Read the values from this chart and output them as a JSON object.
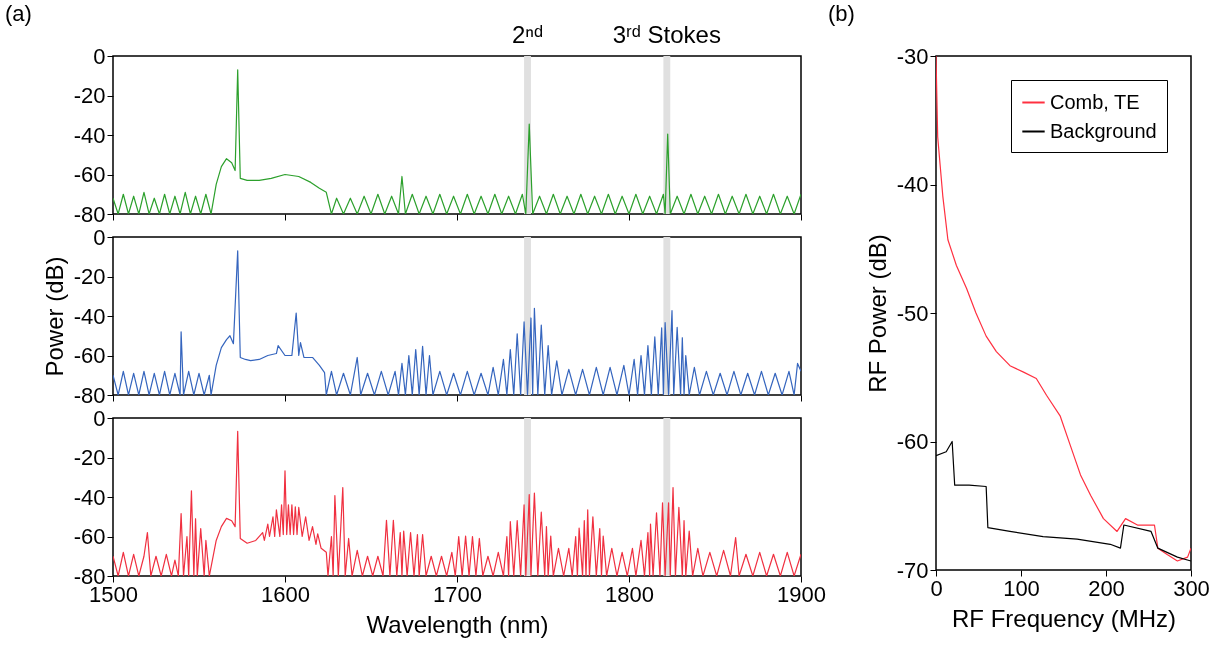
{
  "chart_data": [
    {
      "type": "line",
      "xlim": [
        1500,
        1900
      ],
      "xticks": [
        1500,
        1600,
        1700,
        1800,
        1900
      ],
      "ylim": [
        -80,
        0
      ],
      "yticks": [
        -80,
        -60,
        -40,
        -20,
        0
      ],
      "tick_labels": "y",
      "annotations": [
        "(a)"
      ],
      "bands": [
        {
          "axis": "x",
          "from": 1739,
          "to": 1743,
          "label": "2ⁿᵈ",
          "color": "#e0e0e0"
        },
        {
          "axis": "x",
          "from": 1820,
          "to": 1824,
          "label": "3ʳᵈ Stokes",
          "color": "#e0e0e0"
        }
      ],
      "series": [
        {
          "color": "#2ca02c",
          "x": [
            1500,
            1503,
            1506,
            1509,
            1512,
            1515,
            1518,
            1521,
            1524,
            1527,
            1530,
            1533,
            1536,
            1539,
            1542,
            1545,
            1548,
            1551,
            1554,
            1557,
            1560,
            1563,
            1566,
            1569,
            1571,
            1572.5,
            1574,
            1578,
            1585,
            1592,
            1600,
            1608,
            1615,
            1620,
            1624,
            1627,
            1630,
            1634,
            1638,
            1642,
            1646,
            1650,
            1654,
            1658,
            1662,
            1666,
            1668,
            1670,
            1674,
            1678,
            1682,
            1686,
            1690,
            1694,
            1698,
            1702,
            1706,
            1710,
            1714,
            1718,
            1722,
            1726,
            1730,
            1734,
            1738,
            1740,
            1742,
            1744,
            1748,
            1752,
            1756,
            1760,
            1764,
            1768,
            1772,
            1776,
            1780,
            1784,
            1788,
            1792,
            1796,
            1800,
            1804,
            1808,
            1812,
            1816,
            1820,
            1821,
            1822.5,
            1824,
            1828,
            1832,
            1836,
            1840,
            1844,
            1848,
            1852,
            1856,
            1860,
            1864,
            1868,
            1872,
            1876,
            1880,
            1884,
            1888,
            1892,
            1896,
            1900
          ],
          "values": [
            -72,
            -80,
            -70,
            -80,
            -71,
            -80,
            -69,
            -80,
            -72,
            -80,
            -70,
            -80,
            -71,
            -80,
            -69,
            -80,
            -71,
            -80,
            -70,
            -80,
            -65,
            -56,
            -52,
            -54,
            -58,
            -7,
            -62,
            -63,
            -63,
            -62,
            -60,
            -61,
            -64,
            -67,
            -69,
            -80,
            -72,
            -80,
            -72,
            -80,
            -71,
            -80,
            -70,
            -80,
            -71,
            -80,
            -61,
            -80,
            -70,
            -80,
            -71,
            -80,
            -70,
            -80,
            -71,
            -80,
            -70,
            -80,
            -71,
            -80,
            -70,
            -80,
            -71,
            -80,
            -70,
            -80,
            -34.5,
            -80,
            -71,
            -80,
            -70,
            -80,
            -71,
            -80,
            -70,
            -80,
            -71,
            -80,
            -70,
            -80,
            -71,
            -80,
            -70,
            -80,
            -71,
            -80,
            -70,
            -80,
            -39.5,
            -80,
            -71,
            -80,
            -70,
            -80,
            -71,
            -80,
            -70,
            -80,
            -71,
            -80,
            -70,
            -80,
            -71,
            -80,
            -70,
            -80,
            -71,
            -80,
            -70
          ]
        }
      ]
    },
    {
      "type": "line",
      "xlim": [
        1500,
        1900
      ],
      "xticks": [
        1500,
        1600,
        1700,
        1800,
        1900
      ],
      "ylim": [
        -80,
        0
      ],
      "yticks": [
        -80,
        -60,
        -40,
        -20,
        0
      ],
      "tick_labels": "y",
      "ylabel": "Power (dB)",
      "bands": [
        {
          "axis": "x",
          "from": 1739,
          "to": 1743,
          "color": "#e0e0e0"
        },
        {
          "axis": "x",
          "from": 1820,
          "to": 1824,
          "color": "#e0e0e0"
        }
      ],
      "series": [
        {
          "color": "#3565be",
          "x": [
            1500,
            1503,
            1506,
            1509,
            1512,
            1515,
            1518,
            1521,
            1524,
            1527,
            1530,
            1533,
            1536,
            1539,
            1539.6,
            1541,
            1544,
            1547,
            1550,
            1553,
            1556,
            1557,
            1560,
            1563,
            1566,
            1568,
            1570,
            1572.5,
            1574,
            1577,
            1580,
            1585,
            1590,
            1595,
            1596,
            1600,
            1604,
            1606.5,
            1608,
            1609,
            1611,
            1616,
            1620,
            1623,
            1624,
            1627,
            1630,
            1634,
            1638,
            1642,
            1644,
            1648,
            1652,
            1656,
            1660,
            1664,
            1666,
            1668,
            1670,
            1672,
            1674,
            1676,
            1678,
            1680,
            1682,
            1684,
            1686,
            1690,
            1694,
            1698,
            1702,
            1706,
            1710,
            1714,
            1718,
            1721,
            1724,
            1727,
            1729,
            1731,
            1733,
            1735,
            1737,
            1739,
            1741,
            1743,
            1744,
            1745,
            1747,
            1749,
            1751,
            1753,
            1755,
            1758,
            1761,
            1765,
            1769,
            1773,
            1777,
            1781,
            1785,
            1789,
            1793,
            1797,
            1800,
            1803,
            1805,
            1807,
            1809,
            1811,
            1813,
            1815,
            1817,
            1819,
            1820,
            1821,
            1823,
            1825,
            1826,
            1828,
            1830,
            1831,
            1832,
            1833,
            1835,
            1838,
            1841,
            1845,
            1849,
            1853,
            1857,
            1861,
            1865,
            1869,
            1873,
            1877,
            1881,
            1885,
            1889,
            1893,
            1896,
            1898,
            1900
          ],
          "values": [
            -70,
            -80,
            -68,
            -80,
            -69,
            -80,
            -68,
            -80,
            -69,
            -80,
            -68,
            -80,
            -69,
            -80,
            -48,
            -80,
            -68,
            -80,
            -69,
            -80,
            -70,
            -80,
            -65,
            -56,
            -52,
            -50,
            -54,
            -7,
            -61,
            -62,
            -62.6,
            -62,
            -60,
            -59,
            -55,
            -60,
            -60,
            -38.5,
            -60,
            -53.5,
            -61,
            -61,
            -65,
            -68.7,
            -80,
            -68,
            -80,
            -69,
            -80,
            -61,
            -80,
            -69,
            -80,
            -68,
            -80,
            -68,
            -80,
            -64,
            -80,
            -60,
            -80,
            -57,
            -80,
            -55.4,
            -80,
            -60,
            -80,
            -68,
            -80,
            -69,
            -80,
            -68,
            -80,
            -69,
            -80,
            -66,
            -80,
            -62,
            -80,
            -57,
            -80,
            -49,
            -80,
            -43,
            -80,
            -41,
            -80,
            -36.1,
            -80,
            -44.6,
            -80,
            -55,
            -80,
            -62.7,
            -80,
            -67,
            -80,
            -67,
            -80,
            -66,
            -80,
            -66,
            -80,
            -65,
            -80,
            -62,
            -80,
            -60,
            -80,
            -55,
            -80,
            -50.6,
            -80,
            -46,
            -80,
            -43.4,
            -80,
            -37.3,
            -80,
            -45.8,
            -80,
            -51,
            -80,
            -60,
            -80,
            -66,
            -80,
            -68,
            -80,
            -69,
            -80,
            -68,
            -80,
            -69,
            -80,
            -68,
            -80,
            -69,
            -80,
            -68,
            -80,
            -64,
            -68
          ]
        }
      ]
    },
    {
      "type": "line",
      "xlim": [
        1500,
        1900
      ],
      "xticks": [
        1500,
        1600,
        1700,
        1800,
        1900
      ],
      "ylim": [
        -80,
        0
      ],
      "yticks": [
        -80,
        -60,
        -40,
        -20,
        0
      ],
      "xlabel": "Wavelength (nm)",
      "bands": [
        {
          "axis": "x",
          "from": 1739,
          "to": 1743,
          "color": "#e0e0e0"
        },
        {
          "axis": "x",
          "from": 1820,
          "to": 1824,
          "color": "#e0e0e0"
        }
      ],
      "series": [
        {
          "color": "#f03040",
          "x": [
            1500,
            1503,
            1506,
            1509,
            1512,
            1515,
            1518,
            1520,
            1522,
            1525,
            1528,
            1531,
            1534,
            1536,
            1538,
            1539.6,
            1541,
            1543,
            1544,
            1545.6,
            1547,
            1548,
            1549,
            1551,
            1553,
            1554,
            1556,
            1560,
            1563,
            1566,
            1569,
            1571,
            1572.5,
            1574,
            1578,
            1583,
            1587,
            1588,
            1590,
            1591,
            1593,
            1594,
            1595,
            1597,
            1598,
            1599,
            1600,
            1601,
            1602,
            1603,
            1604,
            1605,
            1606,
            1607,
            1608,
            1610,
            1612,
            1614,
            1616,
            1618,
            1619,
            1621,
            1624,
            1625,
            1627,
            1628,
            1629,
            1631,
            1633.6,
            1635,
            1637,
            1639,
            1642,
            1645,
            1648,
            1651,
            1654,
            1657,
            1659,
            1661,
            1663,
            1665,
            1667,
            1668,
            1669,
            1671,
            1673,
            1675,
            1677,
            1678,
            1680,
            1682,
            1685,
            1688,
            1691,
            1694,
            1697,
            1699,
            1701,
            1703,
            1705,
            1707,
            1709,
            1711,
            1713,
            1715,
            1718,
            1721,
            1724,
            1727,
            1729,
            1730,
            1731,
            1733,
            1735,
            1737,
            1739,
            1740,
            1742,
            1743,
            1745,
            1747,
            1749,
            1751,
            1752,
            1753,
            1754.5,
            1756,
            1759,
            1762,
            1765,
            1767,
            1769,
            1770,
            1771,
            1773,
            1774,
            1775,
            1776,
            1777,
            1779,
            1781,
            1783,
            1784,
            1785,
            1787,
            1790,
            1793,
            1796,
            1799,
            1802,
            1804,
            1807,
            1809,
            1811,
            1812,
            1812.5,
            1814,
            1816,
            1818,
            1819.5,
            1821,
            1823,
            1824,
            1825.6,
            1827,
            1829,
            1831,
            1832,
            1833,
            1835,
            1837,
            1840,
            1843,
            1847,
            1851,
            1855,
            1859,
            1862,
            1864,
            1868,
            1872,
            1876,
            1880,
            1884,
            1888,
            1892,
            1896,
            1900
          ],
          "values": [
            -70,
            -80,
            -68,
            -80,
            -69,
            -80,
            -70,
            -58,
            -80,
            -70,
            -80,
            -69,
            -80,
            -72,
            -80,
            -48.4,
            -80,
            -60,
            -80,
            -36.9,
            -80,
            -51,
            -80,
            -56,
            -80,
            -62,
            -80,
            -62,
            -55,
            -50.8,
            -52,
            -55,
            -6.7,
            -61,
            -63.4,
            -62,
            -58,
            -62,
            -53.7,
            -60,
            -50,
            -60,
            -46.5,
            -60,
            -44,
            -59,
            -26.7,
            -59,
            -44,
            -59,
            -44,
            -59,
            -45,
            -59,
            -45.3,
            -60,
            -50,
            -62,
            -55,
            -64,
            -58.6,
            -66,
            -68,
            -80,
            -60,
            -80,
            -39.3,
            -80,
            -35.2,
            -80,
            -61,
            -80,
            -67,
            -80,
            -70,
            -80,
            -70,
            -80,
            -51.8,
            -80,
            -51.8,
            -80,
            -58,
            -80,
            -57.3,
            -80,
            -58,
            -80,
            -59,
            -80,
            -59,
            -80,
            -70,
            -80,
            -70,
            -80,
            -68,
            -80,
            -60,
            -80,
            -59.8,
            -80,
            -60,
            -80,
            -61,
            -80,
            -70,
            -80,
            -68,
            -80,
            -60,
            -80,
            -52.5,
            -80,
            -52,
            -80,
            -44,
            -80,
            -38.8,
            -80,
            -38,
            -80,
            -47.7,
            -80,
            -55,
            -80,
            -59.8,
            -80,
            -66,
            -80,
            -66,
            -80,
            -60,
            -80,
            -55.7,
            -80,
            -52,
            -80,
            -46.5,
            -80,
            -50,
            -80,
            -56,
            -80,
            -59.8,
            -80,
            -66,
            -80,
            -68,
            -80,
            -66,
            -80,
            -62,
            -80,
            -58,
            -80,
            -53.7,
            -80,
            -48,
            -80,
            -42.9,
            -80,
            -43,
            -80,
            -35.2,
            -80,
            -45.3,
            -80,
            -52,
            -80,
            -57.3,
            -80,
            -66,
            -80,
            -68,
            -80,
            -67,
            -80,
            -60.5,
            -80,
            -69,
            -80,
            -68,
            -80,
            -69,
            -80,
            -68,
            -80,
            -69
          ]
        }
      ]
    },
    {
      "type": "line",
      "xlim": [
        0,
        300
      ],
      "xticks": [
        0,
        100,
        200,
        300
      ],
      "ylim": [
        -70,
        -30
      ],
      "yticks": [
        -70,
        -60,
        -50,
        -40,
        -30
      ],
      "xlabel": "RF Frequency (MHz)",
      "ylabel": "RF Power (dB)",
      "legend": "top right",
      "annotations": [
        "(b)"
      ],
      "series": [
        {
          "name": "Comb, TE",
          "color": "#ff3040",
          "x": [
            0,
            2,
            8,
            14,
            24,
            36,
            47,
            59,
            71,
            87,
            103,
            118,
            130,
            146,
            158,
            170,
            182,
            197,
            213,
            223,
            237,
            257,
            261,
            272,
            284,
            296,
            300
          ],
          "values": [
            -30,
            -36.3,
            -40.9,
            -44.3,
            -46.3,
            -48.1,
            -50,
            -51.8,
            -53,
            -54.1,
            -54.6,
            -55.1,
            -56.4,
            -58,
            -60.3,
            -62.6,
            -64.2,
            -66,
            -67,
            -66,
            -66.5,
            -66.5,
            -68.3,
            -68.8,
            -69.3,
            -69,
            -68.3
          ]
        },
        {
          "name": "Background",
          "color": "#000000",
          "x": [
            0,
            12,
            19,
            22,
            39,
            59,
            61,
            87,
            126,
            166,
            205,
            217,
            221,
            253,
            261,
            284,
            300
          ],
          "values": [
            -61.1,
            -60.8,
            -60,
            -63.4,
            -63.4,
            -63.5,
            -66.7,
            -67,
            -67.4,
            -67.6,
            -68,
            -68.3,
            -66.5,
            -67,
            -68.3,
            -69,
            -69.3
          ]
        }
      ]
    }
  ]
}
